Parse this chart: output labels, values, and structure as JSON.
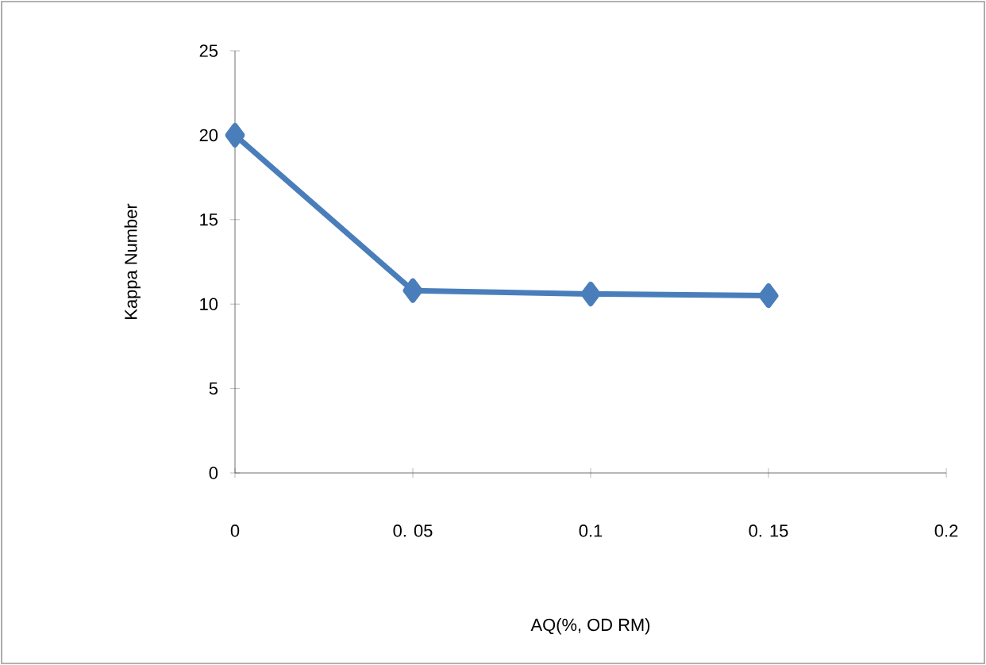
{
  "chart_data": {
    "type": "line",
    "xlabel": "AQ(%, OD RM)",
    "ylabel": "Kappa Number",
    "x": [
      0,
      0.05,
      0.1,
      0.15
    ],
    "series": [
      {
        "color": "#4a7ebb",
        "values": [
          20,
          10.8,
          10.6,
          10.5
        ]
      }
    ],
    "xlim": [
      0,
      0.2
    ],
    "ylim": [
      0,
      25
    ],
    "xticks": [
      0,
      {
        "value": 0.05,
        "label": "0. 05"
      },
      0.1,
      {
        "value": 0.15,
        "label": "0. 15"
      },
      0.2
    ],
    "yticks": [
      0,
      5,
      10,
      15,
      20,
      25
    ],
    "marker": "diamond",
    "line_style": "solid",
    "grid": false
  }
}
